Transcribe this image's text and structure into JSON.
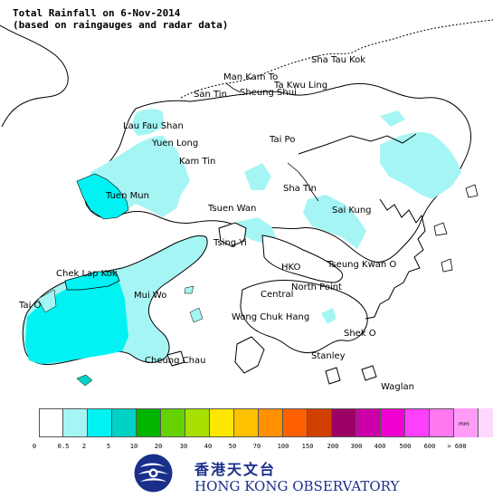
{
  "title": {
    "line1": "Total Rainfall on 6-Nov-2014",
    "line2": "(based on raingauges and radar data)"
  },
  "places": [
    {
      "id": "sha-tau-kok",
      "text": "Sha Tau Kok"
    },
    {
      "id": "man-kam-to",
      "text": "Man Kam To"
    },
    {
      "id": "ta-kwu-ling",
      "text": "Ta Kwu Ling"
    },
    {
      "id": "san-tin",
      "text": "San Tin"
    },
    {
      "id": "sheung-shui",
      "text": "Sheung Shui"
    },
    {
      "id": "lau-fau-shan",
      "text": "Lau Fau Shan"
    },
    {
      "id": "yuen-long",
      "text": "Yuen Long"
    },
    {
      "id": "tai-po",
      "text": "Tai Po"
    },
    {
      "id": "kam-tin",
      "text": "Kam Tin"
    },
    {
      "id": "sha-tin",
      "text": "Sha Tin"
    },
    {
      "id": "tuen-mun",
      "text": "Tuen Mun"
    },
    {
      "id": "tsuen-wan",
      "text": "Tsuen Wan"
    },
    {
      "id": "sai-kung",
      "text": "Sai Kung"
    },
    {
      "id": "tsing-yi",
      "text": "Tsing Yi"
    },
    {
      "id": "chek-lap-kok",
      "text": "Chek Lap Kok"
    },
    {
      "id": "hko",
      "text": "HKO"
    },
    {
      "id": "tseung-kwan-o",
      "text": "Tseung Kwan O"
    },
    {
      "id": "north-point",
      "text": "North Point"
    },
    {
      "id": "mui-wo",
      "text": "Mui Wo"
    },
    {
      "id": "central",
      "text": "Central"
    },
    {
      "id": "tai-o",
      "text": "Tai O"
    },
    {
      "id": "wong-chuk-hang",
      "text": "Wong Chuk Hang"
    },
    {
      "id": "shek-o",
      "text": "Shek O"
    },
    {
      "id": "stanley",
      "text": "Stanley"
    },
    {
      "id": "cheung-chau",
      "text": "Cheung Chau"
    },
    {
      "id": "waglan",
      "text": "Waglan"
    }
  ],
  "legend": {
    "unit": "mm",
    "colors": [
      "#ffffff",
      "#a6f5f5",
      "#00f2f2",
      "#00d2c8",
      "#00b400",
      "#64d200",
      "#a8e000",
      "#ffe600",
      "#ffc000",
      "#ff9000",
      "#ff6000",
      "#d04000",
      "#9c0064",
      "#cc00a8",
      "#f000d0",
      "#ff40ff",
      "#ff78f0",
      "#ff9cf8",
      "#ffd8ff"
    ],
    "thresholds": [
      "0",
      "0.5",
      "2",
      "5",
      "10",
      "20",
      "30",
      "40",
      "50",
      "70",
      "100",
      "150",
      "200",
      "300",
      "400",
      "500",
      "600",
      "> 600"
    ]
  },
  "logo": {
    "chinese": "香港天文台",
    "english": "HONG KONG OBSERVATORY"
  },
  "chart_data": {
    "type": "heatmap",
    "title": "Total Rainfall on 6-Nov-2014",
    "subtitle": "(based on raingauges and radar data)",
    "colorbar_unit": "mm",
    "colorbar_bins": [
      "0",
      "0.5",
      "2",
      "5",
      "10",
      "20",
      "30",
      "40",
      "50",
      "70",
      "100",
      "150",
      "200",
      "300",
      "400",
      "500",
      "600",
      "> 600"
    ],
    "observed_max_band": "2 - 5"
  }
}
